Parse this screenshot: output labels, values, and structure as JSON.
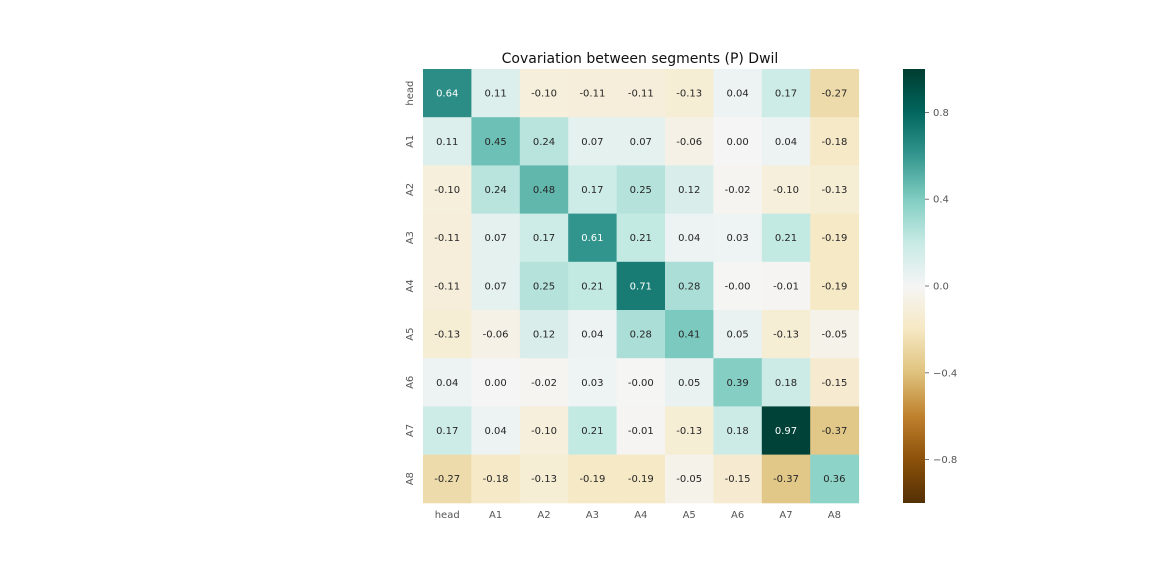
{
  "chart_data": {
    "type": "heatmap",
    "title": "Covariation between segments (P) Dwil",
    "xlabel": "",
    "ylabel": "",
    "x_categories": [
      "head",
      "A1",
      "A2",
      "A3",
      "A4",
      "A5",
      "A6",
      "A7",
      "A8"
    ],
    "y_categories": [
      "head",
      "A1",
      "A2",
      "A3",
      "A4",
      "A5",
      "A6",
      "A7",
      "A8"
    ],
    "values": [
      [
        0.64,
        0.11,
        -0.1,
        -0.11,
        -0.11,
        -0.13,
        0.04,
        0.17,
        -0.27
      ],
      [
        0.11,
        0.45,
        0.24,
        0.07,
        0.07,
        -0.06,
        0.0,
        0.04,
        -0.18
      ],
      [
        -0.1,
        0.24,
        0.48,
        0.17,
        0.25,
        0.12,
        -0.02,
        -0.1,
        -0.13
      ],
      [
        -0.11,
        0.07,
        0.17,
        0.61,
        0.21,
        0.04,
        0.03,
        0.21,
        -0.19
      ],
      [
        -0.11,
        0.07,
        0.25,
        0.21,
        0.71,
        0.28,
        -0.004,
        -0.01,
        -0.19
      ],
      [
        -0.13,
        -0.06,
        0.12,
        0.04,
        0.28,
        0.41,
        0.05,
        -0.13,
        -0.05
      ],
      [
        0.04,
        0.001,
        -0.02,
        0.03,
        -0.004,
        0.05,
        0.39,
        0.18,
        -0.15
      ],
      [
        0.17,
        0.04,
        -0.1,
        0.21,
        -0.01,
        -0.13,
        0.18,
        0.97,
        -0.37
      ],
      [
        -0.27,
        -0.18,
        -0.13,
        -0.19,
        -0.19,
        -0.05,
        -0.15,
        -0.37,
        0.36
      ]
    ],
    "annotation_format": "2f",
    "colormap": "BrBG",
    "vmin": -1.0,
    "vmax": 1.0,
    "colorbar_ticks": [
      0.8,
      0.4,
      0.0,
      -0.4,
      -0.8
    ],
    "colorbar_tick_labels": [
      "0.8",
      "0.4",
      "0.0",
      "−0.4",
      "−0.8"
    ],
    "grid": false,
    "legend": "colorbar-right"
  }
}
